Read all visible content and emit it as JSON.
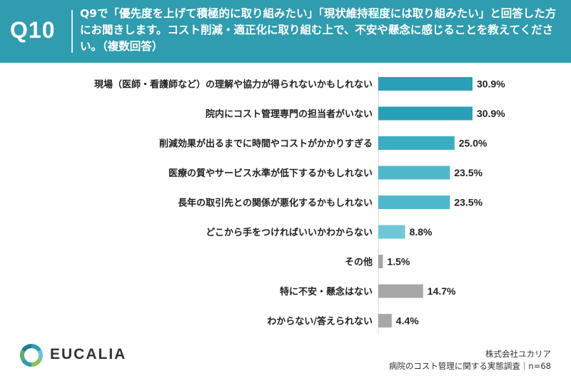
{
  "header": {
    "qnum": "Q10",
    "question": "Q9で「優先度を上げて積極的に取り組みたい」「現状維持程度には取り組みたい」と回答した方にお聞きします。コスト削減・適正化に取り組む上で、不安や懸念に感じることを教えてください。（複数回答）"
  },
  "chart_data": {
    "type": "bar",
    "orientation": "horizontal",
    "categories": [
      "現場（医師・看護師など）の理解や協力が得られないかもしれない",
      "院内にコスト管理専門の担当者がいない",
      "削減効果が出るまでに時間やコストがかかりすぎる",
      "医療の質やサービス水準が低下するかもしれない",
      "長年の取引先との関係が悪化するかもしれない",
      "どこから手をつければいいかわからない",
      "その他",
      "特に不安・懸念はない",
      "わからない/答えられない"
    ],
    "values": [
      30.9,
      30.9,
      25.0,
      23.5,
      23.5,
      8.8,
      1.5,
      14.7,
      4.4
    ],
    "value_labels": [
      "30.9%",
      "30.9%",
      "25.0%",
      "23.5%",
      "23.5%",
      "8.8%",
      "1.5%",
      "14.7%",
      "4.4%"
    ],
    "bar_colors": [
      "#2a9fb8",
      "#2a9fb8",
      "#3aadc3",
      "#4db8cc",
      "#4db8cc",
      "#6ec8d8",
      "#a7a7a7",
      "#a7a7a7",
      "#a7a7a7"
    ],
    "xlim": [
      0,
      35
    ],
    "grid": false,
    "legend": "none"
  },
  "footer": {
    "logo_text": "EUCALIA",
    "company": "株式会社ユカリア",
    "survey": "病院のコスト管理に関する実態調査｜n=68"
  }
}
